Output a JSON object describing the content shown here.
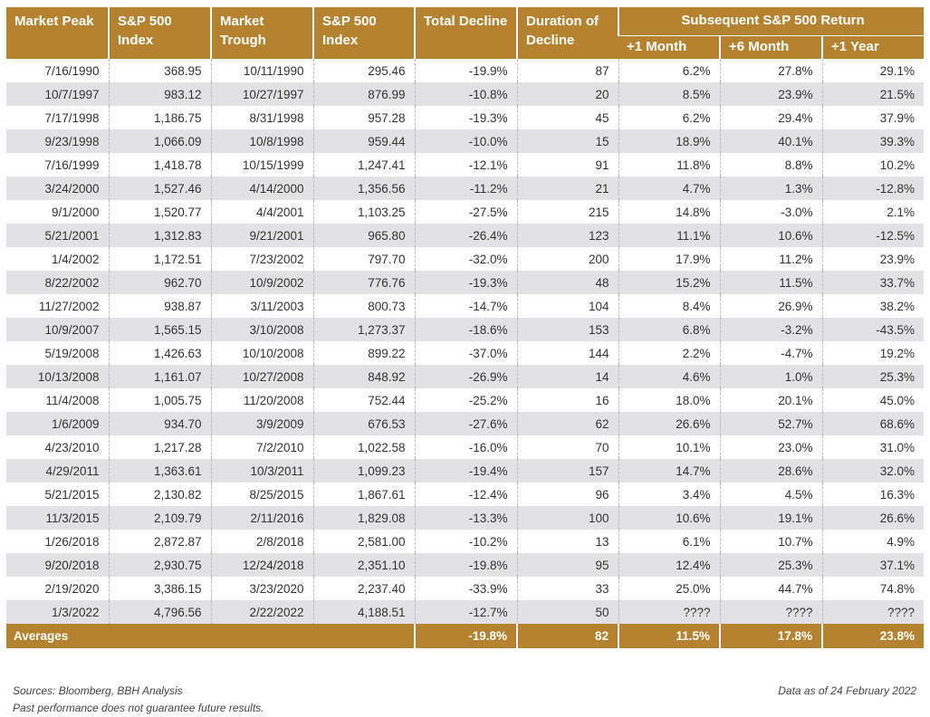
{
  "headers": {
    "market_peak": "Market Peak",
    "sp500_index_peak": "S&P 500 Index",
    "market_trough": "Market Trough",
    "sp500_index_trough": "S&P 500 Index",
    "total_decline": "Total Decline",
    "duration": "Duration of Decline",
    "subsequent_group": "Subsequent S&P 500 Return",
    "plus_1_month": "+1 Month",
    "plus_6_month": "+6 Month",
    "plus_1_year": "+1 Year"
  },
  "rows": [
    {
      "peak": "7/16/1990",
      "peak_index": "368.95",
      "trough": "10/11/1990",
      "trough_index": "295.46",
      "decline": "-19.9%",
      "duration": "87",
      "m1": "6.2%",
      "m6": "27.8%",
      "y1": "29.1%"
    },
    {
      "peak": "10/7/1997",
      "peak_index": "983.12",
      "trough": "10/27/1997",
      "trough_index": "876.99",
      "decline": "-10.8%",
      "duration": "20",
      "m1": "8.5%",
      "m6": "23.9%",
      "y1": "21.5%"
    },
    {
      "peak": "7/17/1998",
      "peak_index": "1,186.75",
      "trough": "8/31/1998",
      "trough_index": "957.28",
      "decline": "-19.3%",
      "duration": "45",
      "m1": "6.2%",
      "m6": "29.4%",
      "y1": "37.9%"
    },
    {
      "peak": "9/23/1998",
      "peak_index": "1,066.09",
      "trough": "10/8/1998",
      "trough_index": "959.44",
      "decline": "-10.0%",
      "duration": "15",
      "m1": "18.9%",
      "m6": "40.1%",
      "y1": "39.3%"
    },
    {
      "peak": "7/16/1999",
      "peak_index": "1,418.78",
      "trough": "10/15/1999",
      "trough_index": "1,247.41",
      "decline": "-12.1%",
      "duration": "91",
      "m1": "11.8%",
      "m6": "8.8%",
      "y1": "10.2%"
    },
    {
      "peak": "3/24/2000",
      "peak_index": "1,527.46",
      "trough": "4/14/2000",
      "trough_index": "1,356.56",
      "decline": "-11.2%",
      "duration": "21",
      "m1": "4.7%",
      "m6": "1.3%",
      "y1": "-12.8%"
    },
    {
      "peak": "9/1/2000",
      "peak_index": "1,520.77",
      "trough": "4/4/2001",
      "trough_index": "1,103.25",
      "decline": "-27.5%",
      "duration": "215",
      "m1": "14.8%",
      "m6": "-3.0%",
      "y1": "2.1%"
    },
    {
      "peak": "5/21/2001",
      "peak_index": "1,312.83",
      "trough": "9/21/2001",
      "trough_index": "965.80",
      "decline": "-26.4%",
      "duration": "123",
      "m1": "11.1%",
      "m6": "10.6%",
      "y1": "-12.5%"
    },
    {
      "peak": "1/4/2002",
      "peak_index": "1,172.51",
      "trough": "7/23/2002",
      "trough_index": "797.70",
      "decline": "-32.0%",
      "duration": "200",
      "m1": "17.9%",
      "m6": "11.2%",
      "y1": "23.9%"
    },
    {
      "peak": "8/22/2002",
      "peak_index": "962.70",
      "trough": "10/9/2002",
      "trough_index": "776.76",
      "decline": "-19.3%",
      "duration": "48",
      "m1": "15.2%",
      "m6": "11.5%",
      "y1": "33.7%"
    },
    {
      "peak": "11/27/2002",
      "peak_index": "938.87",
      "trough": "3/11/2003",
      "trough_index": "800.73",
      "decline": "-14.7%",
      "duration": "104",
      "m1": "8.4%",
      "m6": "26.9%",
      "y1": "38.2%"
    },
    {
      "peak": "10/9/2007",
      "peak_index": "1,565.15",
      "trough": "3/10/2008",
      "trough_index": "1,273.37",
      "decline": "-18.6%",
      "duration": "153",
      "m1": "6.8%",
      "m6": "-3.2%",
      "y1": "-43.5%"
    },
    {
      "peak": "5/19/2008",
      "peak_index": "1,426.63",
      "trough": "10/10/2008",
      "trough_index": "899.22",
      "decline": "-37.0%",
      "duration": "144",
      "m1": "2.2%",
      "m6": "-4.7%",
      "y1": "19.2%"
    },
    {
      "peak": "10/13/2008",
      "peak_index": "1,161.07",
      "trough": "10/27/2008",
      "trough_index": "848.92",
      "decline": "-26.9%",
      "duration": "14",
      "m1": "4.6%",
      "m6": "1.0%",
      "y1": "25.3%"
    },
    {
      "peak": "11/4/2008",
      "peak_index": "1,005.75",
      "trough": "11/20/2008",
      "trough_index": "752.44",
      "decline": "-25.2%",
      "duration": "16",
      "m1": "18.0%",
      "m6": "20.1%",
      "y1": "45.0%"
    },
    {
      "peak": "1/6/2009",
      "peak_index": "934.70",
      "trough": "3/9/2009",
      "trough_index": "676.53",
      "decline": "-27.6%",
      "duration": "62",
      "m1": "26.6%",
      "m6": "52.7%",
      "y1": "68.6%"
    },
    {
      "peak": "4/23/2010",
      "peak_index": "1,217.28",
      "trough": "7/2/2010",
      "trough_index": "1,022.58",
      "decline": "-16.0%",
      "duration": "70",
      "m1": "10.1%",
      "m6": "23.0%",
      "y1": "31.0%"
    },
    {
      "peak": "4/29/2011",
      "peak_index": "1,363.61",
      "trough": "10/3/2011",
      "trough_index": "1,099.23",
      "decline": "-19.4%",
      "duration": "157",
      "m1": "14.7%",
      "m6": "28.6%",
      "y1": "32.0%"
    },
    {
      "peak": "5/21/2015",
      "peak_index": "2,130.82",
      "trough": "8/25/2015",
      "trough_index": "1,867.61",
      "decline": "-12.4%",
      "duration": "96",
      "m1": "3.4%",
      "m6": "4.5%",
      "y1": "16.3%"
    },
    {
      "peak": "11/3/2015",
      "peak_index": "2,109.79",
      "trough": "2/11/2016",
      "trough_index": "1,829.08",
      "decline": "-13.3%",
      "duration": "100",
      "m1": "10.6%",
      "m6": "19.1%",
      "y1": "26.6%"
    },
    {
      "peak": "1/26/2018",
      "peak_index": "2,872.87",
      "trough": "2/8/2018",
      "trough_index": "2,581.00",
      "decline": "-10.2%",
      "duration": "13",
      "m1": "6.1%",
      "m6": "10.7%",
      "y1": "4.9%"
    },
    {
      "peak": "9/20/2018",
      "peak_index": "2,930.75",
      "trough": "12/24/2018",
      "trough_index": "2,351.10",
      "decline": "-19.8%",
      "duration": "95",
      "m1": "12.4%",
      "m6": "25.3%",
      "y1": "37.1%"
    },
    {
      "peak": "2/19/2020",
      "peak_index": "3,386.15",
      "trough": "3/23/2020",
      "trough_index": "2,237.40",
      "decline": "-33.9%",
      "duration": "33",
      "m1": "25.0%",
      "m6": "44.7%",
      "y1": "74.8%"
    },
    {
      "peak": "1/3/2022",
      "peak_index": "4,796.56",
      "trough": "2/22/2022",
      "trough_index": "4,188.51",
      "decline": "-12.7%",
      "duration": "50",
      "m1": "????",
      "m6": "????",
      "y1": "????"
    }
  ],
  "averages": {
    "label": "Averages",
    "decline": "-19.8%",
    "duration": "82",
    "m1": "11.5%",
    "m6": "17.8%",
    "y1": "23.8%"
  },
  "footer": {
    "sources": "Sources: Bloomberg, BBH Analysis",
    "disclaimer": "Past performance does not guarantee future results.",
    "data_as_of": "Data as of 24 February 2022"
  },
  "colors": {
    "header_gold": "#b5832f",
    "row_stripe": "#e2e2e4"
  }
}
